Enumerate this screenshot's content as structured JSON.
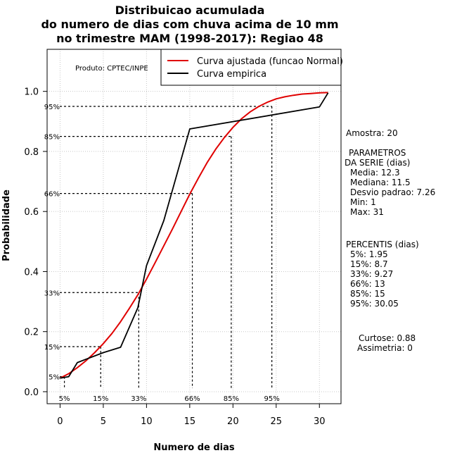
{
  "chart_data": {
    "type": "line",
    "title": [
      "Distribuicao acumulada",
      "do numero de dias com chuva acima de 10 mm",
      "no trimestre MAM (1998-2017): Regiao 48"
    ],
    "xlabel": "Numero de dias",
    "ylabel": "Probabilidade",
    "xlim": [
      -1.5,
      32.5
    ],
    "ylim": [
      -0.04,
      1.14
    ],
    "x_ticks": [
      0,
      5,
      10,
      15,
      20,
      25,
      30
    ],
    "y_ticks": [
      0.0,
      0.2,
      0.4,
      0.6,
      0.8,
      1.0
    ],
    "y_tick_labels": [
      "0.0",
      "0.2",
      "0.4",
      "0.6",
      "0.8",
      "1.0"
    ],
    "grid": true,
    "product_label": "Produto: CPTEC/INPE",
    "legend": {
      "position": "top-right",
      "entries": [
        {
          "label": "Curva ajustada (funcao Normal)",
          "color": "#e00000"
        },
        {
          "label": "Curva empirica",
          "color": "#000000"
        }
      ]
    },
    "series": [
      {
        "name": "Curva ajustada (funcao Normal)",
        "color": "#e00000",
        "x": [
          0,
          1,
          2,
          3,
          4,
          5,
          6,
          7,
          8,
          9,
          10,
          11,
          12,
          13,
          14,
          15,
          16,
          17,
          18,
          19,
          20,
          21,
          22,
          23,
          24,
          25,
          26,
          27,
          28,
          29,
          30,
          31
        ],
        "y": [
          0.045,
          0.06,
          0.08,
          0.103,
          0.13,
          0.16,
          0.194,
          0.233,
          0.277,
          0.323,
          0.375,
          0.43,
          0.486,
          0.542,
          0.6,
          0.658,
          0.711,
          0.762,
          0.807,
          0.846,
          0.88,
          0.909,
          0.932,
          0.95,
          0.964,
          0.975,
          0.982,
          0.987,
          0.991,
          0.993,
          0.995,
          0.996
        ]
      },
      {
        "name": "Curva empirica",
        "color": "#000000",
        "x": [
          0,
          1,
          2,
          5,
          7,
          9,
          10,
          12,
          15,
          30,
          31
        ],
        "y": [
          0.045,
          0.05,
          0.097,
          0.13,
          0.148,
          0.28,
          0.42,
          0.57,
          0.875,
          0.948,
          0.995
        ]
      }
    ],
    "percentile_markers": [
      {
        "label": "5%",
        "x": 0.5,
        "y": 0.05
      },
      {
        "label": "15%",
        "x": 4.7,
        "y": 0.15
      },
      {
        "label": "33%",
        "x": 9.1,
        "y": 0.33
      },
      {
        "label": "66%",
        "x": 15.3,
        "y": 0.66
      },
      {
        "label": "85%",
        "x": 19.8,
        "y": 0.85
      },
      {
        "label": "95%",
        "x": 24.5,
        "y": 0.95
      }
    ]
  },
  "side_panel": {
    "sample": "Amostra: 20",
    "params_title_1": "PARAMETROS",
    "params_title_2": "DA SERIE (dias)",
    "params": [
      "Media: 12.3",
      "Mediana: 11.5",
      "Desvio padrao: 7.26",
      "Min: 1",
      "Max: 31"
    ],
    "percentis_title": "PERCENTIS (dias)",
    "percentis": [
      "5%: 1.95",
      "15%: 8.7",
      "33%: 9.27",
      "66%: 13",
      "85%: 15",
      "95%: 30.05"
    ],
    "kurtosis": "Curtose: 0.88",
    "skewness": "Assimetria: 0"
  }
}
